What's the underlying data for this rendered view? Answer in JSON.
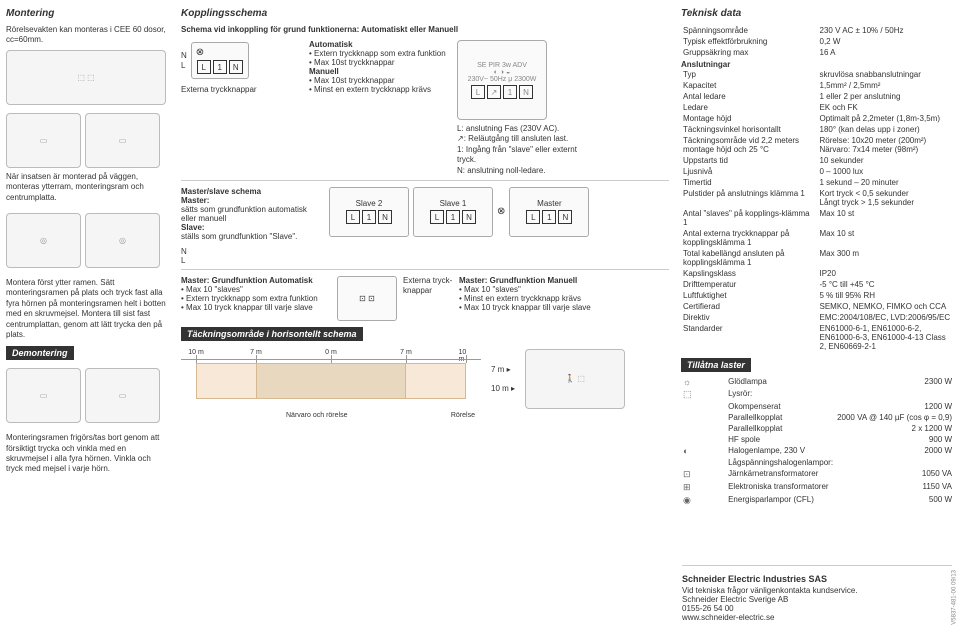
{
  "col1": {
    "h_mount": "Montering",
    "mount_text": "Rörelsevakten kan monteras i CEE 60 dosor, cc=60mm.",
    "caption1": "När insatsen är monterad på väggen, monteras ytterram, monteringsram och centrumplatta.",
    "assembly_text": "Montera först ytter ramen. Sätt monteringsramen på plats och tryck fast alla fyra hörnen på monteringsramen helt i botten med en skruvmejsel. Montera till sist fast centrumplattan, genom att lätt trycka den på plats.",
    "h_disassembly": "Demontering",
    "disassembly_text": "Monteringsramen frigörs/tas bort genom att försiktigt trycka och vinkla med en skruvmejsel i alla fyra hörnen. Vinkla och tryck med mejsel i varje hörn."
  },
  "col2": {
    "h_wiring": "Kopplingsschema",
    "sub1": "Schema vid inkoppling för grund funktionerna: Automatiskt eller Manuell",
    "ext_push": "Externa tryckknappar",
    "auto_h": "Automatisk",
    "auto_b1": "Extern tryckknapp som extra funktion",
    "auto_b2": "Max 10st tryckknappar",
    "man_h": "Manuell",
    "man_b1": "Max 10st tryckknappar",
    "man_b2": "Minst en extern tryckknapp krävs",
    "device_lbl": "SE PIR 3w ADV",
    "device_spec": "230V~  50Hz  μ  2300W",
    "conn_L": "L: anslutning Fas (230V AC).",
    "conn_arrow": "↗: Reläutgång till ansluten last.",
    "conn_1": "1: Ingång från \"slave\" eller externt tryck.",
    "conn_N": "N: anslutning noll-ledare.",
    "ms_h": "Master/slave schema",
    "ms_master": "Master:",
    "ms_master_t": "sätts som grundfunktion automatisk eller manuell",
    "ms_slave": "Slave:",
    "ms_slave_t": "ställs som grundfunktion \"Slave\".",
    "slave2": "Slave 2",
    "slave1": "Slave 1",
    "master": "Master",
    "ga_h": "Master: Grundfunktion Automatisk",
    "ga_b1": "Max 10 \"slaves\"",
    "ga_b2": "Extern tryckknapp som extra funktion",
    "ga_b3": "Max 10 tryck knappar till varje slave",
    "gm_h": "Master: Grundfunktion Manuell",
    "gm_b1": "Max 10 \"slaves\"",
    "gm_b2": "Minst en extern tryckknapp krävs",
    "gm_b3": "Max 10 tryck knappar till varje slave",
    "ext_k": "Externa tryck-knappar",
    "cov_h": "Täckningsområde i horisontellt schema",
    "cov_ticks": [
      "10 m",
      "7 m",
      "0 m",
      "7 m",
      "10 m"
    ],
    "cov_presence": "Närvaro och rörelse",
    "cov_motion": "Rörelse",
    "cov_left": "7 m",
    "cov_down": "10 m",
    "terminals": {
      "L": "L",
      "one": "1",
      "N": "N"
    },
    "NL": {
      "N": "N",
      "L": "L"
    }
  },
  "td": {
    "h": "Teknisk data",
    "rows": [
      [
        "Spänningsområde",
        "230 V AC ± 10% / 50Hz"
      ],
      [
        "Typisk effektförbrukning",
        "0,2 W"
      ],
      [
        "Gruppsäkring max",
        "16 A"
      ]
    ],
    "conn_h": "Anslutningar",
    "conn_rows": [
      [
        "Typ",
        "skruvlösa snabbanslutningar"
      ],
      [
        "Kapacitet",
        "1,5mm² / 2,5mm²"
      ],
      [
        "Antal ledare",
        "1 eller 2 per anslutning"
      ],
      [
        "Ledare",
        "EK och FK"
      ]
    ],
    "rows2": [
      [
        "Montage höjd",
        "Optimalt på 2,2meter (1,8m-3,5m)"
      ],
      [
        "Täckningsvinkel horisontallt",
        "180° (kan delas upp i zoner)"
      ],
      [
        "Täckningsområde vid 2,2 meters montage höjd och 25 °C",
        "Rörelse: 10x20 meter (200m²)\nNärvaro: 7x14 meter (98m²)"
      ],
      [
        "Uppstarts tid",
        "10 sekunder"
      ],
      [
        "Ljusnivå",
        "0 – 1000 lux"
      ],
      [
        "Timertid",
        "1 sekund – 20 minuter"
      ],
      [
        "Pulstider på anslutnings klämma 1",
        "Kort tryck < 0,5 sekunder\nLångt tryck > 1,5 sekunder"
      ],
      [
        "Antal \"slaves\" på kopplings-klämma 1",
        "Max 10 st"
      ],
      [
        "Antal externa tryckknappar på kopplingsklämma 1",
        "Max 10 st"
      ],
      [
        "Total kabellängd ansluten på kopplingsklämma 1",
        "Max 300 m"
      ],
      [
        "Kapslingsklass",
        "IP20"
      ],
      [
        "Drifttemperatur",
        "-5 °C till +45 °C"
      ],
      [
        "Luftfuktighet",
        "5 % till 95% RH"
      ],
      [
        "Certifierad",
        "SEMKO, NEMKO, FIMKO och CCA"
      ],
      [
        "Direktiv",
        "EMC:2004/108/EC, LVD:2006/95/EC"
      ],
      [
        "Standarder",
        "EN61000-6-1, EN61000-6-2, EN61000-6-3, EN61000-4-13 Class 2, EN60669-2-1"
      ]
    ],
    "loads_h": "Tillåtna laster",
    "loads": [
      [
        "☼",
        "Glödlampa",
        "2300 W"
      ],
      [
        "⬚",
        "Lysrör:",
        ""
      ],
      [
        "",
        "   Okompenserat",
        "1200 W"
      ],
      [
        "",
        "   Parallellkopplat",
        "2000 VA @ 140 µF (cos φ = 0,9)"
      ],
      [
        "",
        "   Parallellkopplat",
        "2 x 1200 W"
      ],
      [
        "",
        "   HF spole",
        "900 W"
      ],
      [
        "◐",
        "Halogenlampe, 230 V",
        "2000 W"
      ],
      [
        "",
        "Lågspänningshalogenlampor:",
        ""
      ],
      [
        "⊡",
        "   Järnkärnetransformatorer",
        "1050 VA"
      ],
      [
        "⊞",
        "   Elektroniska transformatorer",
        "1150 VA"
      ],
      [
        "◉",
        "Energisparlampor (CFL)",
        "500 W"
      ]
    ]
  },
  "footer": {
    "company": "Schneider Electric Industries SAS",
    "l1": "Vid tekniska frågor vänligenkontakta kundservice.",
    "l2": "Schneider Electric Sverige AB",
    "l3": "0155-26 54 00",
    "l4": "www.schneider-electric.se",
    "code": "V5837-481-00  09/13"
  }
}
